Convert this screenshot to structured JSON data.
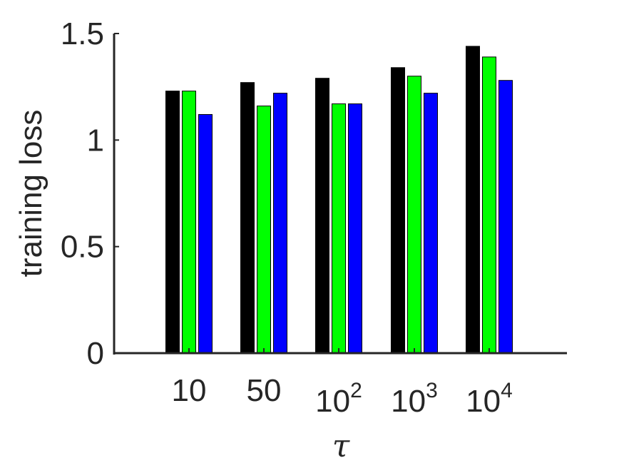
{
  "chart_data": {
    "type": "bar",
    "title": "",
    "xlabel": "τ",
    "ylabel": "training loss",
    "categories": [
      {
        "base": "10",
        "exp": ""
      },
      {
        "base": "50",
        "exp": ""
      },
      {
        "base": "10",
        "exp": "2"
      },
      {
        "base": "10",
        "exp": "3"
      },
      {
        "base": "10",
        "exp": "4"
      }
    ],
    "yticks": [
      "0",
      "0.5",
      "1",
      "1.5"
    ],
    "ytick_values": [
      0,
      0.5,
      1,
      1.5
    ],
    "ylim": [
      0,
      1.5
    ],
    "grid": false,
    "legend": "none",
    "series": [
      {
        "color": "#000000",
        "values": [
          1.23,
          1.27,
          1.29,
          1.34,
          1.44
        ]
      },
      {
        "color": "#00ff00",
        "values": [
          1.23,
          1.16,
          1.17,
          1.3,
          1.39
        ]
      },
      {
        "color": "#0000ff",
        "values": [
          1.12,
          1.22,
          1.17,
          1.22,
          1.28
        ]
      }
    ]
  }
}
